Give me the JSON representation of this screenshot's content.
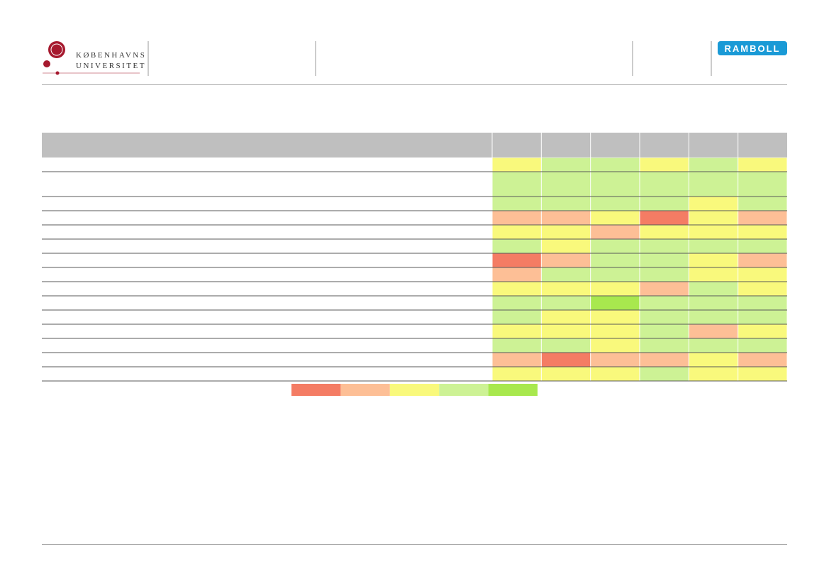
{
  "header": {
    "university_logo": [
      "KØBENHAVNS",
      "UNIVERSITET"
    ],
    "company_logo": "RAMBOLL"
  },
  "table": {
    "header_color": "#bfbfbf",
    "rows": [
      [
        "#f9f97c",
        "#cdf295",
        "#cdf295",
        "#f9f97c",
        "#cdf295",
        "#f9f97c"
      ],
      [
        "#cdf295",
        "#cdf295",
        "#cdf295",
        "#cdf295",
        "#cdf295",
        "#cdf295"
      ],
      [
        "#cdf295",
        "#cdf295",
        "#cdf295",
        "#cdf295",
        "#f9f97c",
        "#cdf295"
      ],
      [
        "#fdbf96",
        "#fdbf96",
        "#f9f97c",
        "#f47c64",
        "#f9f97c",
        "#fdbf96"
      ],
      [
        "#f9f97c",
        "#f9f97c",
        "#fdbf96",
        "#f9f97c",
        "#f9f97c",
        "#f9f97c"
      ],
      [
        "#cdf295",
        "#f9f97c",
        "#cdf295",
        "#cdf295",
        "#cdf295",
        "#cdf295"
      ],
      [
        "#f47c64",
        "#fdbf96",
        "#cdf295",
        "#cdf295",
        "#f9f97c",
        "#fdbf96"
      ],
      [
        "#fdbf96",
        "#cdf295",
        "#cdf295",
        "#cdf295",
        "#f9f97c",
        "#f9f97c"
      ],
      [
        "#f9f97c",
        "#f9f97c",
        "#f9f97c",
        "#fdbf96",
        "#cdf295",
        "#f9f97c"
      ],
      [
        "#cdf295",
        "#cdf295",
        "#a8e84e",
        "#cdf295",
        "#cdf295",
        "#cdf295"
      ],
      [
        "#cdf295",
        "#f9f97c",
        "#f9f97c",
        "#cdf295",
        "#cdf295",
        "#cdf295"
      ],
      [
        "#f9f97c",
        "#f9f97c",
        "#f9f97c",
        "#cdf295",
        "#fdbf96",
        "#f9f97c"
      ],
      [
        "#cdf295",
        "#cdf295",
        "#f9f97c",
        "#cdf295",
        "#cdf295",
        "#cdf295"
      ],
      [
        "#fdbf96",
        "#f47c64",
        "#fdbf96",
        "#fdbf96",
        "#f9f97c",
        "#fdbf96"
      ],
      [
        "#f9f97c",
        "#f9f97c",
        "#f9f97c",
        "#cdf295",
        "#f9f97c",
        "#f9f97c"
      ]
    ],
    "legend": [
      "#f47c64",
      "#fdbf96",
      "#f9f97c",
      "#cdf295",
      "#a8e84e"
    ]
  }
}
